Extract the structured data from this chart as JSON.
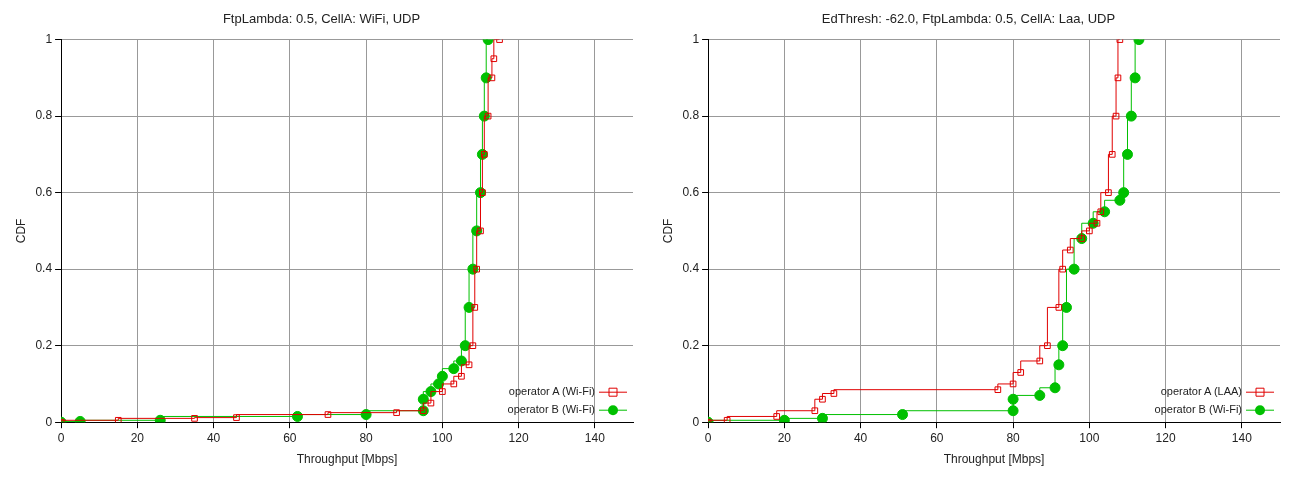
{
  "chart_data": [
    {
      "type": "step",
      "title": "FtpLambda: 0.5, CellA: WiFi, UDP",
      "xlabel": "Throughput [Mbps]",
      "ylabel": "CDF",
      "xlim": [
        0,
        150
      ],
      "xticks": [
        0,
        20,
        40,
        60,
        80,
        100,
        120,
        140
      ],
      "ylim": [
        0,
        1
      ],
      "yticks": [
        0,
        0.2,
        0.4,
        0.6,
        0.8,
        1
      ],
      "grid": true,
      "legend": "bottom right",
      "series": [
        {
          "name": "operator A (Wi-Fi)",
          "color": "#e00000",
          "marker": "square",
          "x": [
            0,
            15,
            35,
            46,
            70,
            88,
            95,
            97,
            100,
            103,
            105,
            107,
            108,
            108.5,
            109,
            110,
            110.5,
            111,
            112,
            113,
            113.5,
            115
          ],
          "values": [
            0,
            0.005,
            0.01,
            0.012,
            0.02,
            0.025,
            0.03,
            0.05,
            0.08,
            0.1,
            0.12,
            0.15,
            0.2,
            0.3,
            0.4,
            0.5,
            0.6,
            0.7,
            0.8,
            0.9,
            0.95,
            1
          ]
        },
        {
          "name": "operator B (Wi-Fi)",
          "color": "#00c000",
          "marker": "circle",
          "x": [
            0,
            5,
            26,
            62,
            80,
            95,
            95,
            97,
            99,
            100,
            103,
            105,
            106,
            107,
            108,
            109,
            110,
            110.5,
            111,
            111.5,
            112
          ],
          "values": [
            0,
            0.002,
            0.005,
            0.015,
            0.02,
            0.03,
            0.06,
            0.08,
            0.1,
            0.12,
            0.14,
            0.16,
            0.2,
            0.3,
            0.4,
            0.5,
            0.6,
            0.7,
            0.8,
            0.9,
            1
          ]
        }
      ]
    },
    {
      "type": "step",
      "title": "EdThresh: -62.0, FtpLambda: 0.5, CellA: Laa, UDP",
      "xlabel": "Throughput [Mbps]",
      "ylabel": "CDF",
      "xlim": [
        0,
        150
      ],
      "xticks": [
        0,
        20,
        40,
        60,
        80,
        100,
        120,
        140
      ],
      "ylim": [
        0,
        1
      ],
      "yticks": [
        0,
        0.2,
        0.4,
        0.6,
        0.8,
        1
      ],
      "grid": true,
      "legend": "bottom right",
      "series": [
        {
          "name": "operator A (LAA)",
          "color": "#e00000",
          "marker": "square",
          "x": [
            0,
            5,
            18,
            28,
            30,
            33,
            76,
            80,
            82,
            87,
            89,
            92,
            93,
            95,
            98,
            100,
            102,
            103,
            105,
            106,
            107,
            107.5,
            108
          ],
          "values": [
            0,
            0.005,
            0.015,
            0.03,
            0.06,
            0.075,
            0.085,
            0.1,
            0.13,
            0.16,
            0.2,
            0.3,
            0.4,
            0.45,
            0.48,
            0.5,
            0.52,
            0.55,
            0.6,
            0.7,
            0.8,
            0.9,
            1
          ]
        },
        {
          "name": "operator B (Wi-Fi)",
          "color": "#00c000",
          "marker": "circle",
          "x": [
            0,
            20,
            30,
            51,
            80,
            80,
            87,
            91,
            92,
            93,
            94,
            96,
            98,
            101,
            104,
            108,
            109,
            110,
            111,
            112,
            113
          ],
          "values": [
            0,
            0.005,
            0.01,
            0.02,
            0.03,
            0.06,
            0.07,
            0.09,
            0.15,
            0.2,
            0.3,
            0.4,
            0.48,
            0.52,
            0.55,
            0.58,
            0.6,
            0.7,
            0.8,
            0.9,
            1
          ]
        }
      ]
    }
  ]
}
